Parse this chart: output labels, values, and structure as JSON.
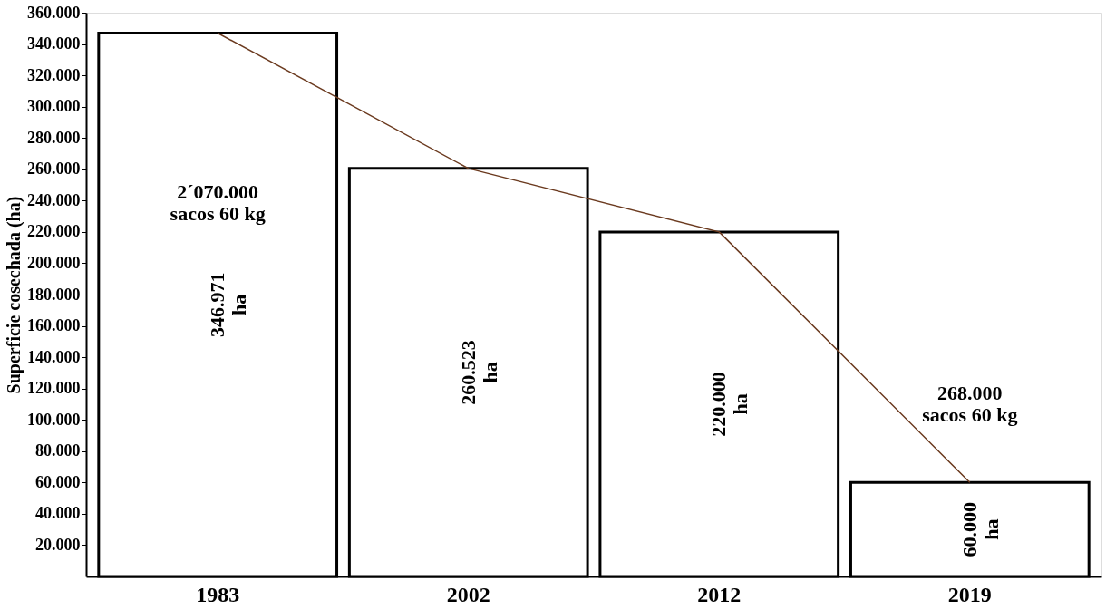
{
  "chart_data": {
    "type": "bar",
    "ylabel": "Superficie cosechada (ha)",
    "categories": [
      "1983",
      "2002",
      "2012",
      "2019"
    ],
    "series": [
      {
        "color": "#ffffff",
        "values": [
          346971,
          260523,
          220000,
          60000
        ],
        "value_labels": [
          "346.971\nha",
          "260.523\nha",
          "220.000\nha",
          "60.000\nha"
        ]
      },
      {
        "type": "line",
        "color": "#6b3a1f",
        "values": [
          346971,
          260523,
          220000,
          60000
        ]
      }
    ],
    "ylim": [
      0,
      360000
    ],
    "yticks": [
      {
        "value": 20000,
        "label": "20.000"
      },
      {
        "value": 40000,
        "label": "40.000"
      },
      {
        "value": 60000,
        "label": "60.000"
      },
      {
        "value": 80000,
        "label": "80.000"
      },
      {
        "value": 100000,
        "label": "100.000"
      },
      {
        "value": 120000,
        "label": "120.000"
      },
      {
        "value": 140000,
        "label": "140.000"
      },
      {
        "value": 160000,
        "label": "160.000"
      },
      {
        "value": 180000,
        "label": "180.000"
      },
      {
        "value": 200000,
        "label": "200.000"
      },
      {
        "value": 220000,
        "label": "220.000"
      },
      {
        "value": 240000,
        "label": "240.000"
      },
      {
        "value": 260000,
        "label": "260.000"
      },
      {
        "value": 280000,
        "label": "280.000"
      },
      {
        "value": 300000,
        "label": "300.000"
      },
      {
        "value": 320000,
        "label": "320.000"
      },
      {
        "value": 340000,
        "label": "340.000"
      },
      {
        "value": 360000,
        "label": "360.000"
      }
    ],
    "annotations": [
      "2´070.000\nsacos 60 kg",
      "268.000\nsacos 60 kg"
    ],
    "grid": false
  }
}
